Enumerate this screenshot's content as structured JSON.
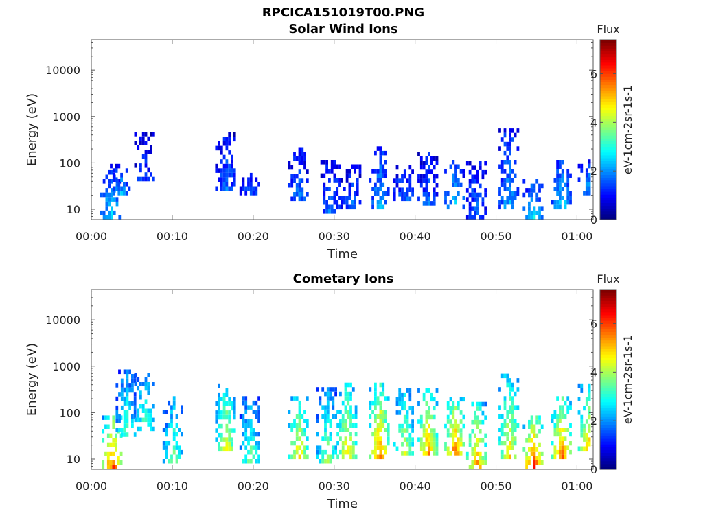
{
  "figure": {
    "title": "RPCICA151019T00.PNG"
  },
  "chart_data": [
    {
      "type": "heatmap",
      "title": "Solar Wind Ions",
      "xlabel": "Time",
      "ylabel": "Energy (eV)",
      "x_ticks": [
        "00:00",
        "00:10",
        "00:20",
        "00:30",
        "00:40",
        "00:50",
        "01:00"
      ],
      "x_range_min": [
        0,
        62
      ],
      "y_scale": "log",
      "y_ticks": [
        "10",
        "100",
        "1000",
        "10000"
      ],
      "y_range": [
        6,
        45000
      ],
      "colorbar": {
        "label": "Flux",
        "unit_label": "eV-1cm-2sr-1s-1",
        "ticks": [
          "0",
          "2",
          "4",
          "6"
        ],
        "range": [
          0,
          7.4
        ],
        "colormap": "jet"
      },
      "clusters": [
        {
          "t": 2.3,
          "e_lo": 6,
          "e_hi": 60,
          "flux": 2.4
        },
        {
          "t": 3.5,
          "e_lo": 20,
          "e_hi": 80,
          "flux": 2.0
        },
        {
          "t": 6.5,
          "e_lo": 40,
          "e_hi": 400,
          "flux": 1.3
        },
        {
          "t": 16.5,
          "e_lo": 25,
          "e_hi": 400,
          "flux": 1.6
        },
        {
          "t": 19.5,
          "e_lo": 20,
          "e_hi": 50,
          "flux": 1.4
        },
        {
          "t": 25.5,
          "e_lo": 15,
          "e_hi": 200,
          "flux": 1.6
        },
        {
          "t": 29.5,
          "e_lo": 8,
          "e_hi": 100,
          "flux": 1.7
        },
        {
          "t": 32,
          "e_lo": 10,
          "e_hi": 80,
          "flux": 1.5
        },
        {
          "t": 35.5,
          "e_lo": 10,
          "e_hi": 200,
          "flux": 2.0
        },
        {
          "t": 38.5,
          "e_lo": 15,
          "e_hi": 80,
          "flux": 1.6
        },
        {
          "t": 41.5,
          "e_lo": 12,
          "e_hi": 150,
          "flux": 1.6
        },
        {
          "t": 44.8,
          "e_lo": 10,
          "e_hi": 100,
          "flux": 2.2
        },
        {
          "t": 47.5,
          "e_lo": 6,
          "e_hi": 100,
          "flux": 1.6
        },
        {
          "t": 51.5,
          "e_lo": 10,
          "e_hi": 600,
          "flux": 2.0
        },
        {
          "t": 54.5,
          "e_lo": 6,
          "e_hi": 40,
          "flux": 2.4
        },
        {
          "t": 58,
          "e_lo": 10,
          "e_hi": 100,
          "flux": 2.3
        },
        {
          "t": 61.3,
          "e_lo": 20,
          "e_hi": 100,
          "flux": 1.9
        }
      ]
    },
    {
      "type": "heatmap",
      "title": "Cometary Ions",
      "xlabel": "Time",
      "ylabel": "Energy (eV)",
      "x_ticks": [
        "00:00",
        "00:10",
        "00:20",
        "00:30",
        "00:40",
        "00:50",
        "01:00"
      ],
      "x_range_min": [
        0,
        62
      ],
      "y_scale": "log",
      "y_ticks": [
        "10",
        "100",
        "1000",
        "10000"
      ],
      "y_range": [
        6,
        45000
      ],
      "colorbar": {
        "label": "Flux",
        "unit_label": "eV-1cm-2sr-1s-1",
        "ticks": [
          "0",
          "2",
          "4",
          "6"
        ],
        "range": [
          0,
          7.4
        ],
        "colormap": "jet"
      },
      "clusters": [
        {
          "t": 2.5,
          "e_lo": 6,
          "e_hi": 80,
          "flux": 5.5
        },
        {
          "t": 4.2,
          "e_lo": 30,
          "e_hi": 700,
          "flux": 3.0
        },
        {
          "t": 6.5,
          "e_lo": 40,
          "e_hi": 700,
          "flux": 3.2
        },
        {
          "t": 10,
          "e_lo": 8,
          "e_hi": 200,
          "flux": 3.3
        },
        {
          "t": 16.5,
          "e_lo": 15,
          "e_hi": 400,
          "flux": 4.2
        },
        {
          "t": 19.5,
          "e_lo": 8,
          "e_hi": 200,
          "flux": 3.3
        },
        {
          "t": 25.5,
          "e_lo": 10,
          "e_hi": 200,
          "flux": 4.5
        },
        {
          "t": 29,
          "e_lo": 8,
          "e_hi": 300,
          "flux": 3.5
        },
        {
          "t": 31.5,
          "e_lo": 10,
          "e_hi": 400,
          "flux": 4.5
        },
        {
          "t": 35.5,
          "e_lo": 10,
          "e_hi": 400,
          "flux": 5.2
        },
        {
          "t": 38.5,
          "e_lo": 12,
          "e_hi": 300,
          "flux": 4.0
        },
        {
          "t": 41.5,
          "e_lo": 12,
          "e_hi": 300,
          "flux": 5.0
        },
        {
          "t": 44.8,
          "e_lo": 12,
          "e_hi": 200,
          "flux": 5.3
        },
        {
          "t": 47.5,
          "e_lo": 6,
          "e_hi": 150,
          "flux": 5.0
        },
        {
          "t": 51.5,
          "e_lo": 10,
          "e_hi": 600,
          "flux": 4.5
        },
        {
          "t": 54.5,
          "e_lo": 6,
          "e_hi": 80,
          "flux": 5.8
        },
        {
          "t": 58,
          "e_lo": 10,
          "e_hi": 200,
          "flux": 5.3
        },
        {
          "t": 61.3,
          "e_lo": 15,
          "e_hi": 400,
          "flux": 4.6
        }
      ]
    }
  ]
}
